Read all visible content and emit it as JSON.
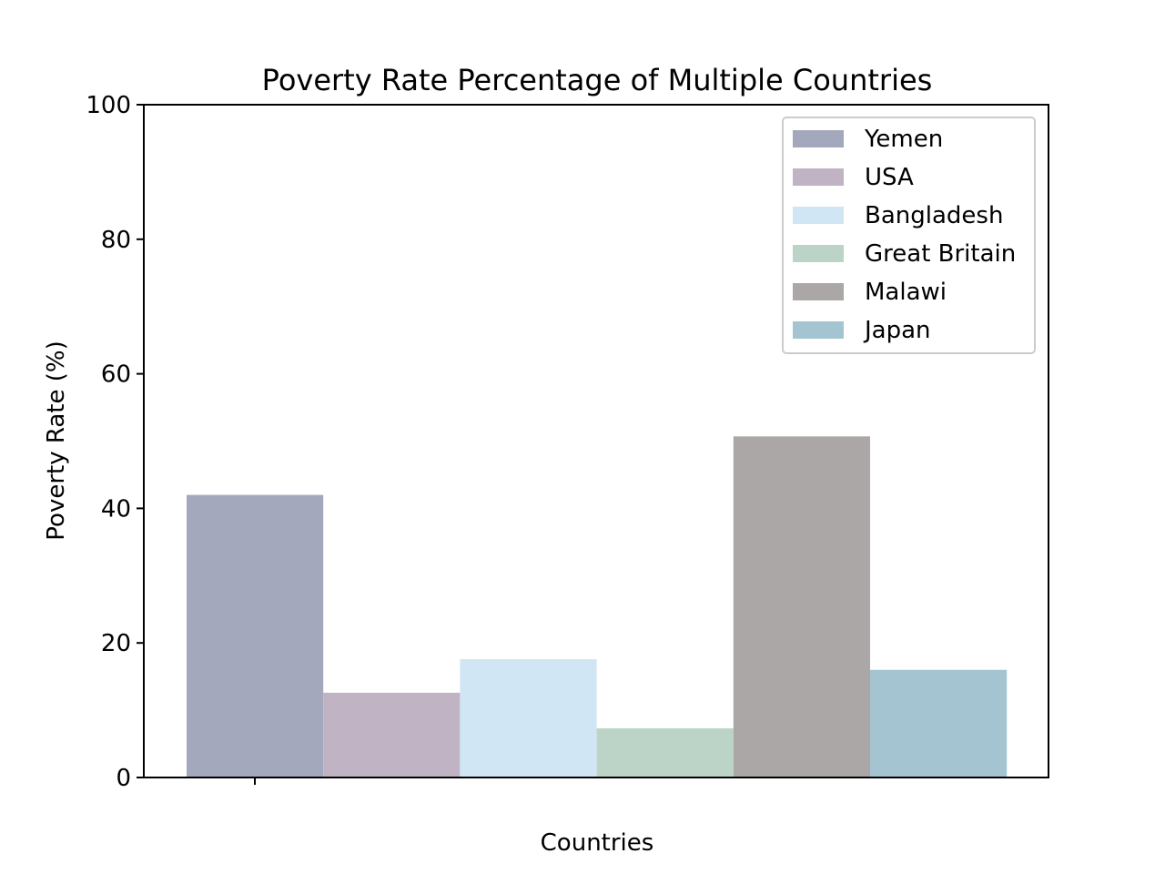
{
  "chart_data": {
    "type": "bar",
    "title": "Poverty Rate Percentage of Multiple Countries",
    "xlabel": "Countries",
    "ylabel": "Poverty Rate (%)",
    "ylim": [
      0,
      100
    ],
    "yticks": [
      "0",
      "20",
      "40",
      "60",
      "80",
      "100"
    ],
    "xticks": [
      ""
    ],
    "grid": false,
    "legend_position": "upper right",
    "series": [
      {
        "name": "Yemen",
        "value": 42,
        "color": "#a4a8bc"
      },
      {
        "name": "USA",
        "value": 12.6,
        "color": "#c0b4c4"
      },
      {
        "name": "Bangladesh",
        "value": 17.6,
        "color": "#d1e6f5"
      },
      {
        "name": "Great Britain",
        "value": 7.3,
        "color": "#bcd4c8"
      },
      {
        "name": "Malawi",
        "value": 50.7,
        "color": "#aba7a7"
      },
      {
        "name": "Japan",
        "value": 16,
        "color": "#a4c4d1"
      }
    ]
  }
}
